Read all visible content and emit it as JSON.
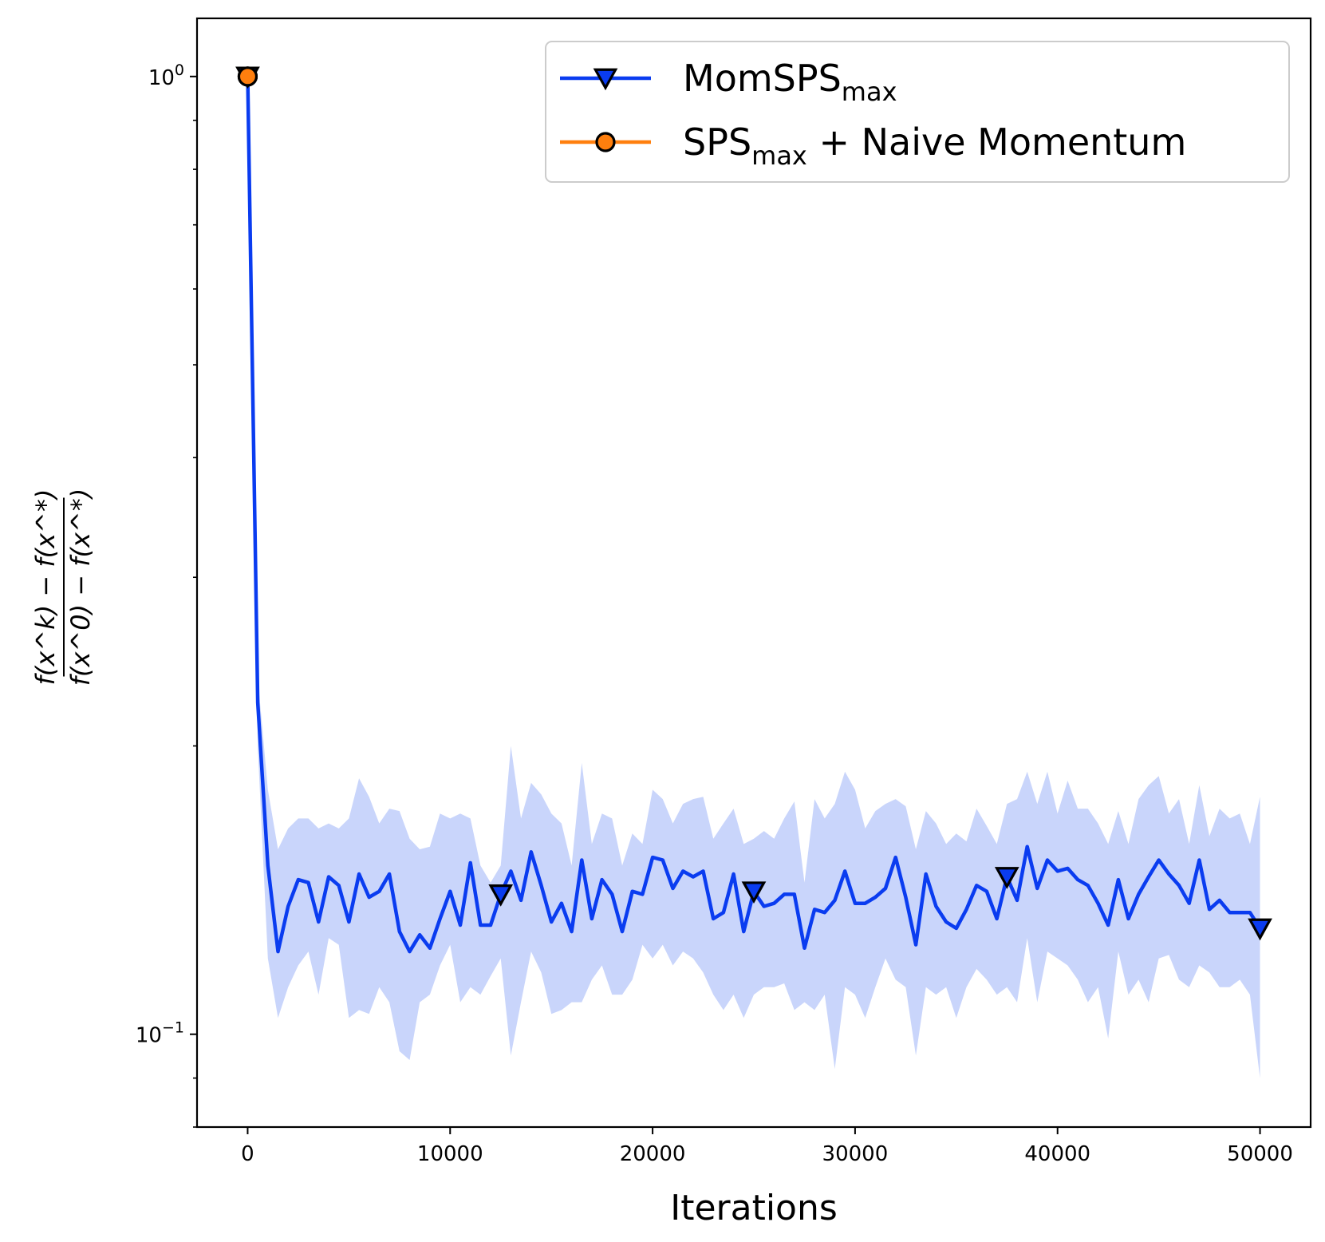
{
  "chart_data": {
    "type": "line",
    "xlabel": "Iterations",
    "ylabel": {
      "numerator": "f(x^k) − f(x^*)",
      "denominator": "f(x^0) − f(x^*)"
    },
    "yscale": "log",
    "xlim": [
      -2500,
      52500
    ],
    "ylim": [
      0.08,
      1.15
    ],
    "x_ticks": [
      0,
      10000,
      20000,
      30000,
      40000,
      50000
    ],
    "x_tick_labels": [
      "0",
      "10000",
      "20000",
      "30000",
      "40000",
      "50000"
    ],
    "y_ticks": [
      1.0,
      0.1
    ],
    "y_tick_labels": [
      {
        "base": "10",
        "exp": "0"
      },
      {
        "base": "10",
        "exp": "−1"
      }
    ],
    "grid": false,
    "legend": {
      "placement": "top-right",
      "entries": [
        {
          "text": "MomSPS",
          "sub": "max",
          "suffix": ""
        },
        {
          "text": "SPS",
          "sub": "max",
          "suffix": " + Naive Momentum"
        }
      ]
    },
    "series": [
      {
        "name": "MomSPS_max",
        "color": "#0a3cf0",
        "band_color": "#c9d5fb",
        "marker": "triangle-down",
        "marker_x": [
          0,
          12500,
          25000,
          37500,
          50000
        ],
        "x": [
          0,
          500,
          1000,
          1500,
          2000,
          2500,
          3000,
          3500,
          4000,
          4500,
          5000,
          5500,
          6000,
          6500,
          7000,
          7500,
          8000,
          8500,
          9000,
          9500,
          10000,
          10500,
          11000,
          11500,
          12000,
          12500,
          13000,
          13500,
          14000,
          14500,
          15000,
          15500,
          16000,
          16500,
          17000,
          17500,
          18000,
          18500,
          19000,
          19500,
          20000,
          20500,
          21000,
          21500,
          22000,
          22500,
          23000,
          23500,
          24000,
          24500,
          25000,
          25500,
          26000,
          26500,
          27000,
          27500,
          28000,
          28500,
          29000,
          29500,
          30000,
          30500,
          31000,
          31500,
          32000,
          32500,
          33000,
          33500,
          34000,
          34500,
          35000,
          35500,
          36000,
          36500,
          37000,
          37500,
          38000,
          38500,
          39000,
          39500,
          40000,
          40500,
          41000,
          41500,
          42000,
          42500,
          43000,
          43500,
          44000,
          44500,
          45000,
          45500,
          46000,
          46500,
          47000,
          47500,
          48000,
          48500,
          49000,
          49500,
          50000
        ],
        "y": [
          1.0,
          0.222,
          0.15,
          0.122,
          0.136,
          0.145,
          0.144,
          0.131,
          0.146,
          0.143,
          0.131,
          0.147,
          0.139,
          0.141,
          0.147,
          0.128,
          0.122,
          0.127,
          0.123,
          0.132,
          0.141,
          0.13,
          0.151,
          0.13,
          0.13,
          0.14,
          0.148,
          0.138,
          0.155,
          0.143,
          0.131,
          0.137,
          0.128,
          0.152,
          0.132,
          0.145,
          0.14,
          0.128,
          0.141,
          0.14,
          0.153,
          0.152,
          0.142,
          0.148,
          0.146,
          0.148,
          0.132,
          0.134,
          0.147,
          0.128,
          0.141,
          0.136,
          0.137,
          0.14,
          0.14,
          0.123,
          0.135,
          0.134,
          0.138,
          0.148,
          0.137,
          0.137,
          0.139,
          0.142,
          0.153,
          0.139,
          0.124,
          0.147,
          0.136,
          0.131,
          0.129,
          0.135,
          0.143,
          0.141,
          0.132,
          0.146,
          0.138,
          0.157,
          0.142,
          0.152,
          0.148,
          0.149,
          0.145,
          0.143,
          0.137,
          0.13,
          0.145,
          0.132,
          0.14,
          0.146,
          0.152,
          0.147,
          0.143,
          0.137,
          0.152,
          0.135,
          0.138,
          0.134,
          0.134,
          0.134,
          0.129
        ],
        "lower": [
          1.0,
          0.2,
          0.12,
          0.104,
          0.112,
          0.118,
          0.122,
          0.11,
          0.126,
          0.124,
          0.104,
          0.106,
          0.105,
          0.112,
          0.108,
          0.096,
          0.094,
          0.108,
          0.11,
          0.118,
          0.124,
          0.108,
          0.112,
          0.11,
          0.115,
          0.12,
          0.095,
          0.108,
          0.122,
          0.116,
          0.105,
          0.106,
          0.108,
          0.108,
          0.114,
          0.118,
          0.11,
          0.11,
          0.114,
          0.124,
          0.12,
          0.124,
          0.118,
          0.122,
          0.12,
          0.116,
          0.11,
          0.106,
          0.11,
          0.104,
          0.11,
          0.112,
          0.112,
          0.113,
          0.106,
          0.108,
          0.106,
          0.11,
          0.092,
          0.112,
          0.11,
          0.104,
          0.112,
          0.12,
          0.114,
          0.112,
          0.095,
          0.112,
          0.11,
          0.112,
          0.104,
          0.112,
          0.117,
          0.114,
          0.11,
          0.112,
          0.108,
          0.126,
          0.108,
          0.122,
          0.12,
          0.118,
          0.114,
          0.108,
          0.112,
          0.099,
          0.122,
          0.11,
          0.114,
          0.108,
          0.12,
          0.121,
          0.114,
          0.112,
          0.118,
          0.116,
          0.112,
          0.112,
          0.114,
          0.11,
          0.09
        ],
        "upper": [
          1.0,
          0.236,
          0.18,
          0.156,
          0.164,
          0.168,
          0.168,
          0.164,
          0.166,
          0.164,
          0.168,
          0.185,
          0.177,
          0.166,
          0.172,
          0.171,
          0.16,
          0.156,
          0.157,
          0.17,
          0.168,
          0.17,
          0.168,
          0.15,
          0.144,
          0.15,
          0.2,
          0.168,
          0.183,
          0.178,
          0.17,
          0.166,
          0.15,
          0.192,
          0.158,
          0.17,
          0.168,
          0.15,
          0.162,
          0.158,
          0.18,
          0.176,
          0.166,
          0.174,
          0.176,
          0.177,
          0.16,
          0.166,
          0.172,
          0.158,
          0.16,
          0.163,
          0.16,
          0.168,
          0.175,
          0.144,
          0.176,
          0.168,
          0.174,
          0.188,
          0.18,
          0.164,
          0.171,
          0.174,
          0.176,
          0.173,
          0.156,
          0.171,
          0.166,
          0.158,
          0.162,
          0.159,
          0.172,
          0.165,
          0.158,
          0.174,
          0.176,
          0.188,
          0.174,
          0.188,
          0.17,
          0.184,
          0.172,
          0.172,
          0.166,
          0.158,
          0.171,
          0.158,
          0.176,
          0.182,
          0.186,
          0.17,
          0.176,
          0.158,
          0.182,
          0.161,
          0.172,
          0.168,
          0.17,
          0.158,
          0.177
        ]
      },
      {
        "name": "SPS_max + Naive Momentum",
        "color": "#ff7f0e",
        "marker": "circle",
        "marker_x": [
          0
        ],
        "x": [
          0
        ],
        "y": [
          1.0
        ]
      }
    ]
  }
}
